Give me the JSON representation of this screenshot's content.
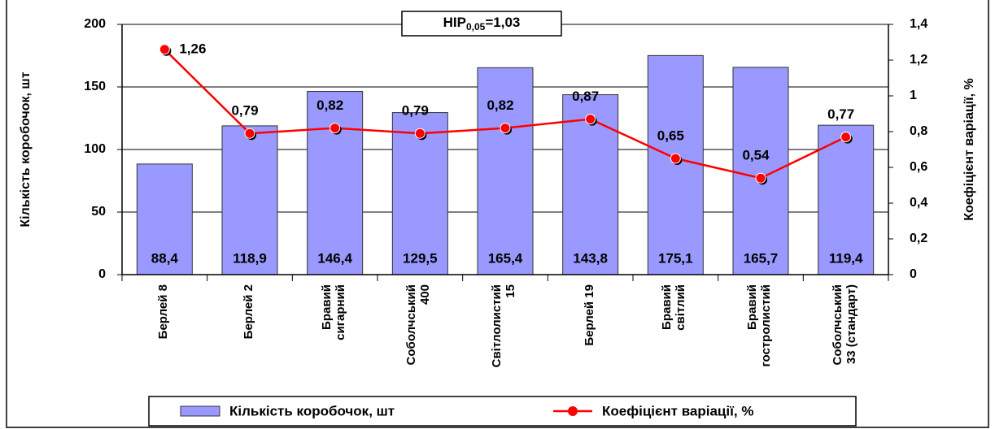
{
  "chart_data": {
    "type": "bar-line",
    "categories": [
      "Берлей 8",
      "Берлей 2",
      "Бравий\nсигарний",
      "Соболчський\n400",
      "Світлолистий\n15",
      "Берлей 19",
      "Бравий\nсвітлий",
      "Бравий\nгостролистий",
      "Соболчський\n33 (стандарт)"
    ],
    "series": [
      {
        "name": "Кількість коробочок, шт",
        "type": "bar",
        "color": "#9999ff",
        "axis": "y",
        "values": [
          88.4,
          118.9,
          146.4,
          129.5,
          165.4,
          143.8,
          175.1,
          165.7,
          119.4
        ],
        "value_labels": [
          "88,4",
          "118,9",
          "146,4",
          "129,5",
          "165,4",
          "143,8",
          "175,1",
          "165,7",
          "119,4"
        ]
      },
      {
        "name": "Коефіцієнт варіації, %",
        "type": "line",
        "color": "#ff0000",
        "axis": "y2",
        "values": [
          1.26,
          0.79,
          0.82,
          0.79,
          0.82,
          0.87,
          0.65,
          0.54,
          0.77
        ],
        "value_labels": [
          "1,26",
          "0,79",
          "0,82",
          "0,79",
          "0,82",
          "0,87",
          "0,65",
          "0,54",
          "0,77"
        ]
      }
    ],
    "y_label": "Кількість коробочок, шт",
    "y2_label": "Коефіцієнт варіації, %",
    "ylim": [
      0,
      200
    ],
    "yticks": [
      0,
      50,
      100,
      150,
      200
    ],
    "y2lim": [
      0,
      1.4
    ],
    "y2ticks": [
      0,
      {
        "value": 0.2,
        "label": "0,2"
      },
      {
        "value": 0.4,
        "label": "0,4"
      },
      {
        "value": 0.6,
        "label": "0,6"
      },
      {
        "value": 0.8,
        "label": "0,8"
      },
      1,
      {
        "value": 1.2,
        "label": "1,2"
      },
      {
        "value": 1.4,
        "label": "1,4"
      }
    ],
    "grid": true,
    "annotation": {
      "text": "НІР",
      "subscript": "0,05",
      "suffix": "=1,03"
    },
    "legend": "bottom"
  }
}
